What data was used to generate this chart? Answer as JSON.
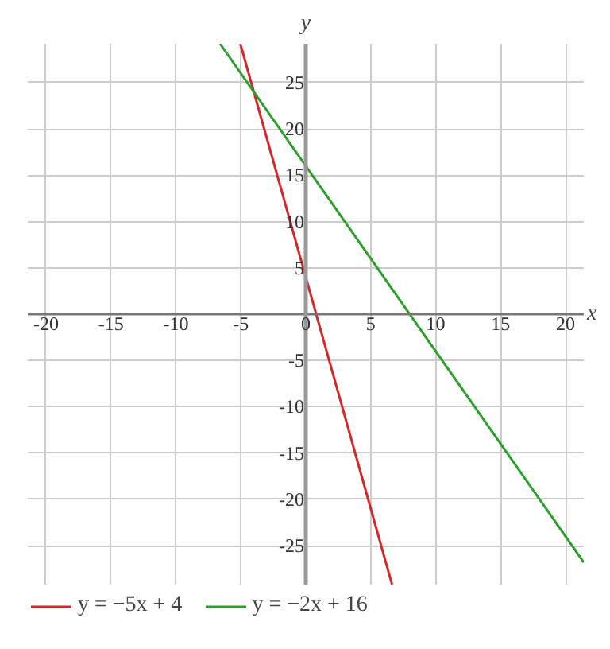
{
  "chart_data": {
    "type": "line",
    "xlabel": "x",
    "ylabel": "y",
    "xlim": [
      -21.4,
      21.4
    ],
    "ylim": [
      -29.2,
      29.2
    ],
    "xticks": [
      -20,
      -15,
      -10,
      -5,
      0,
      5,
      10,
      15,
      20
    ],
    "yticks": [
      -25,
      -20,
      -15,
      -10,
      -5,
      5,
      10,
      15,
      20,
      25
    ],
    "grid": true,
    "legend": "bottom",
    "marker": "none",
    "line_style": "solid",
    "series": [
      {
        "name": "y = −5x + 4",
        "color": "#d62728",
        "x": [
          -5.04,
          6.64
        ],
        "values": [
          29.2,
          -29.2
        ]
      },
      {
        "name": "y = −2x + 16",
        "color": "#2ca02c",
        "x": [
          -6.6,
          21.4
        ],
        "values": [
          29.2,
          -26.8
        ]
      }
    ]
  }
}
